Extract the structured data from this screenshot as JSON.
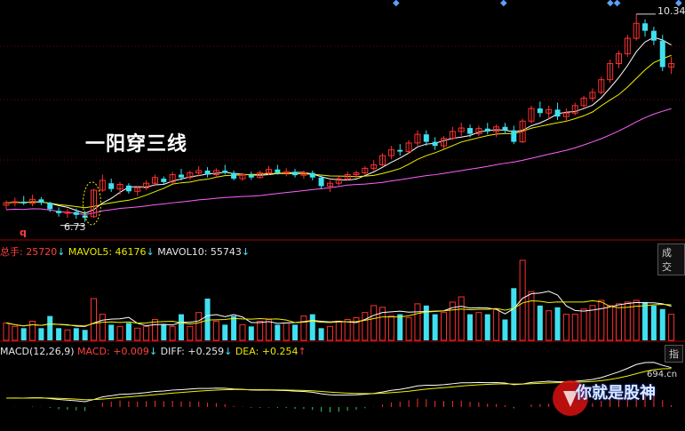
{
  "annotation": {
    "title": "一阳穿三线",
    "low_price": "6.73",
    "high_price": "10.34",
    "marker": "q"
  },
  "volume_panel": {
    "total_label": "总手: 25720",
    "total_arrow": "↓",
    "mavol5_label": "MAVOL5: 46176",
    "mavol5_arrow": "↓",
    "mavol10_label": "MAVOL10: 55743",
    "mavol10_arrow": "↓",
    "tab": "成交"
  },
  "macd_panel": {
    "params_label": "MACD(12,26,9)",
    "macd_label": "MACD: +0.009",
    "macd_arrow": "↓",
    "diff_label": "DIFF: +0.259",
    "diff_arrow": "↓",
    "dea_label": "DEA: +0.254",
    "dea_arrow": "↑",
    "tab": "指"
  },
  "watermark": {
    "text": "你就是股神",
    "site": "694.cn"
  },
  "colors": {
    "up": "#ff3030",
    "down": "#40e0f0",
    "ma5": "#ffffff",
    "ma10": "#f0f000",
    "ma20": "#ff60ff"
  },
  "chart_data": {
    "type": "candlestick",
    "ohlc": [
      [
        7.02,
        7.1,
        6.95,
        7.06
      ],
      [
        7.06,
        7.15,
        7.0,
        7.08
      ],
      [
        7.08,
        7.18,
        7.02,
        7.05
      ],
      [
        7.05,
        7.2,
        7.0,
        7.12
      ],
      [
        7.12,
        7.16,
        7.02,
        7.06
      ],
      [
        7.06,
        7.08,
        6.9,
        6.95
      ],
      [
        6.92,
        6.98,
        6.82,
        6.88
      ],
      [
        6.88,
        6.95,
        6.8,
        6.9
      ],
      [
        6.9,
        6.96,
        6.78,
        6.85
      ],
      [
        6.84,
        6.92,
        6.73,
        6.8
      ],
      [
        6.82,
        7.3,
        6.8,
        7.28
      ],
      [
        7.28,
        7.55,
        7.25,
        7.45
      ],
      [
        7.4,
        7.48,
        7.25,
        7.3
      ],
      [
        7.3,
        7.42,
        7.2,
        7.38
      ],
      [
        7.36,
        7.4,
        7.22,
        7.26
      ],
      [
        7.26,
        7.35,
        7.18,
        7.32
      ],
      [
        7.32,
        7.45,
        7.28,
        7.4
      ],
      [
        7.4,
        7.55,
        7.35,
        7.5
      ],
      [
        7.48,
        7.52,
        7.38,
        7.42
      ],
      [
        7.42,
        7.6,
        7.4,
        7.55
      ],
      [
        7.55,
        7.65,
        7.45,
        7.5
      ],
      [
        7.5,
        7.62,
        7.46,
        7.58
      ],
      [
        7.58,
        7.7,
        7.52,
        7.62
      ],
      [
        7.62,
        7.68,
        7.5,
        7.55
      ],
      [
        7.55,
        7.66,
        7.5,
        7.62
      ],
      [
        7.62,
        7.72,
        7.55,
        7.58
      ],
      [
        7.58,
        7.62,
        7.45,
        7.48
      ],
      [
        7.48,
        7.58,
        7.44,
        7.55
      ],
      [
        7.55,
        7.6,
        7.46,
        7.5
      ],
      [
        7.5,
        7.62,
        7.48,
        7.58
      ],
      [
        7.58,
        7.7,
        7.54,
        7.64
      ],
      [
        7.64,
        7.72,
        7.55,
        7.58
      ],
      [
        7.58,
        7.66,
        7.52,
        7.6
      ],
      [
        7.6,
        7.65,
        7.5,
        7.54
      ],
      [
        7.54,
        7.62,
        7.48,
        7.58
      ],
      [
        7.58,
        7.62,
        7.45,
        7.5
      ],
      [
        7.5,
        7.55,
        7.3,
        7.35
      ],
      [
        7.35,
        7.45,
        7.25,
        7.4
      ],
      [
        7.4,
        7.52,
        7.36,
        7.48
      ],
      [
        7.48,
        7.6,
        7.45,
        7.55
      ],
      [
        7.55,
        7.62,
        7.48,
        7.58
      ],
      [
        7.58,
        7.7,
        7.55,
        7.66
      ],
      [
        7.66,
        7.8,
        7.62,
        7.72
      ],
      [
        7.72,
        7.92,
        7.7,
        7.88
      ],
      [
        7.88,
        8.05,
        7.82,
        7.98
      ],
      [
        7.98,
        8.08,
        7.88,
        7.95
      ],
      [
        7.95,
        8.15,
        7.92,
        8.1
      ],
      [
        8.1,
        8.32,
        8.05,
        8.25
      ],
      [
        8.25,
        8.32,
        8.05,
        8.12
      ],
      [
        8.12,
        8.2,
        7.98,
        8.05
      ],
      [
        8.05,
        8.22,
        8.0,
        8.18
      ],
      [
        8.18,
        8.38,
        8.15,
        8.3
      ],
      [
        8.3,
        8.45,
        8.22,
        8.36
      ],
      [
        8.36,
        8.42,
        8.2,
        8.26
      ],
      [
        8.26,
        8.4,
        8.22,
        8.35
      ],
      [
        8.35,
        8.45,
        8.25,
        8.3
      ],
      [
        8.3,
        8.42,
        8.2,
        8.38
      ],
      [
        8.38,
        8.45,
        8.26,
        8.32
      ],
      [
        8.32,
        8.4,
        8.08,
        8.12
      ],
      [
        8.12,
        8.52,
        8.1,
        8.48
      ],
      [
        8.48,
        8.75,
        8.44,
        8.7
      ],
      [
        8.7,
        8.82,
        8.55,
        8.62
      ],
      [
        8.62,
        8.75,
        8.52,
        8.68
      ],
      [
        8.68,
        8.8,
        8.5,
        8.56
      ],
      [
        8.56,
        8.7,
        8.48,
        8.62
      ],
      [
        8.62,
        8.8,
        8.58,
        8.75
      ],
      [
        8.75,
        8.92,
        8.7,
        8.88
      ],
      [
        8.88,
        9.05,
        8.82,
        8.98
      ],
      [
        8.98,
        9.25,
        8.95,
        9.2
      ],
      [
        9.2,
        9.55,
        9.15,
        9.48
      ],
      [
        9.48,
        9.7,
        9.4,
        9.65
      ],
      [
        9.65,
        9.98,
        9.6,
        9.92
      ],
      [
        9.92,
        10.34,
        9.88,
        10.18
      ],
      [
        10.18,
        10.25,
        9.95,
        10.05
      ],
      [
        10.05,
        10.12,
        9.8,
        9.88
      ],
      [
        9.88,
        9.98,
        9.35,
        9.42
      ],
      [
        9.42,
        9.6,
        9.3,
        9.48
      ]
    ],
    "volumes": [
      20,
      16,
      14,
      22,
      14,
      28,
      14,
      12,
      14,
      12,
      48,
      30,
      18,
      16,
      20,
      14,
      16,
      24,
      18,
      16,
      30,
      16,
      32,
      48,
      22,
      18,
      28,
      18,
      16,
      22,
      24,
      18,
      20,
      18,
      28,
      30,
      14,
      16,
      22,
      24,
      26,
      32,
      40,
      38,
      28,
      30,
      26,
      42,
      40,
      30,
      32,
      44,
      50,
      30,
      32,
      30,
      36,
      24,
      60,
      92,
      56,
      40,
      34,
      38,
      30,
      30,
      36,
      40,
      46,
      40,
      42,
      44,
      46,
      44,
      40,
      36,
      30
    ]
  }
}
